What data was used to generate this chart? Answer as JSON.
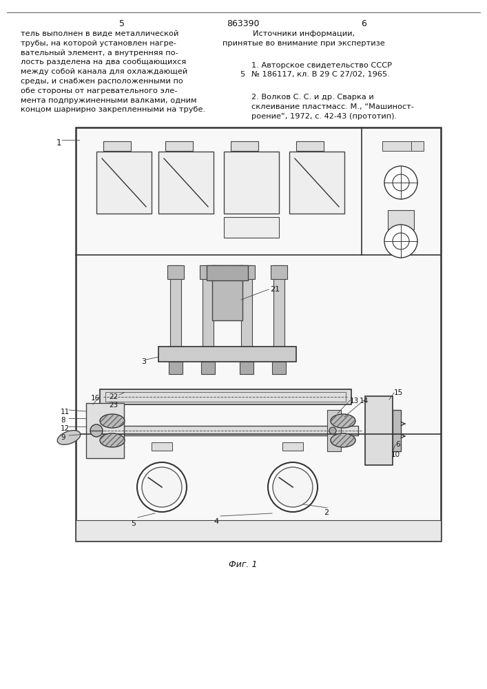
{
  "page_number_left": "5",
  "patent_number": "863390",
  "page_number_right": "6",
  "left_text": [
    "тель выполнен в виде металлической",
    "трубы, на которой установлен нагре-",
    "вательный элемент, а внутренняя по-",
    "лость разделена на два сообщающихся",
    "между собой канала для охлаждающей",
    "среды, и снабжен расположенными по",
    "обе стороны от нагревательного эле-",
    "мента подпружиненными валками, одним",
    "концом шарнирно закрепленными на трубе."
  ],
  "right_header": "Источники информации,",
  "right_subheader": "принятые во внимание при экспертизе",
  "right_text_1a": "1. Авторское свидетельство СССР",
  "right_text_1b_marker": "5",
  "right_text_1b": "№ 186117, кл. В 29 С 27/02, 1965.",
  "right_text_2a": "2. Волков С. С. и др. Сварка и",
  "right_text_2b": "склеивание пластмасс. М., “Машиност-",
  "right_text_2c": "роение”, 1972, с. 42-43 (прототип).",
  "fig_caption": "Фиг. 1",
  "bg_color": "#ffffff"
}
